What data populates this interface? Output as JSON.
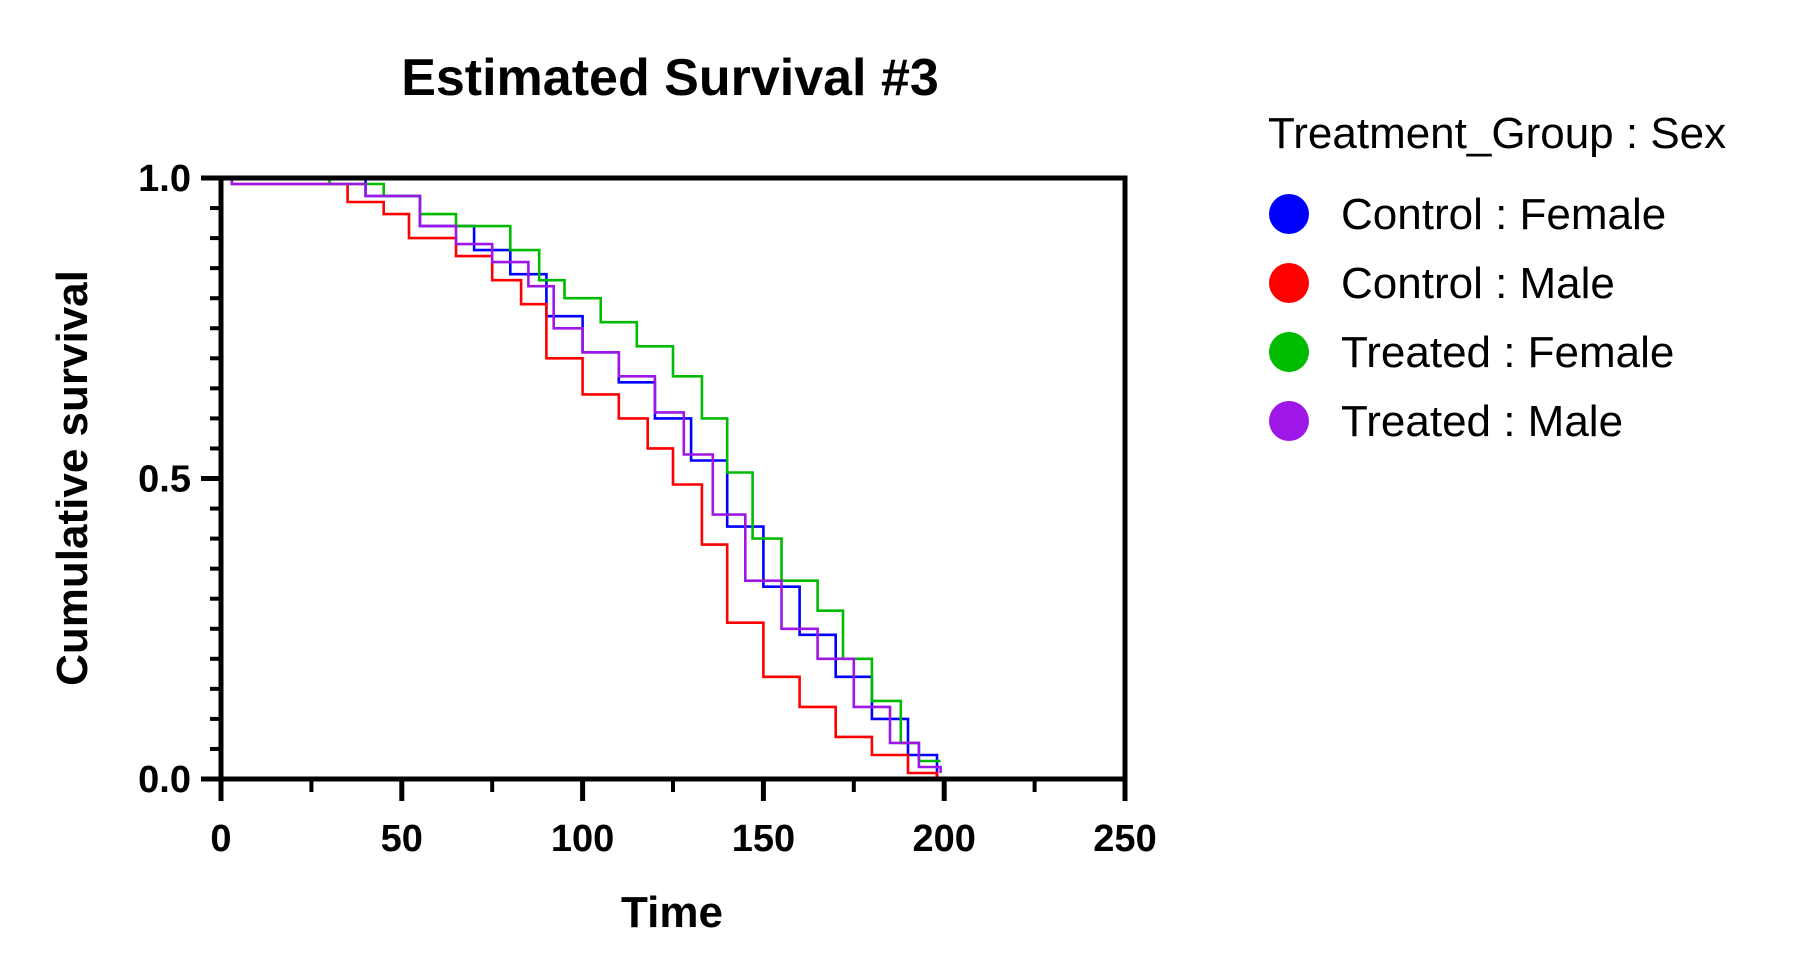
{
  "chart_data": {
    "type": "line",
    "title": "Estimated Survival #3",
    "xlabel": "Time",
    "ylabel": "Cumulative survival",
    "xlim": [
      0,
      250
    ],
    "ylim": [
      0,
      1
    ],
    "x_ticks": [
      "0",
      "50",
      "100",
      "150",
      "200",
      "250"
    ],
    "y_ticks": [
      "0.0",
      "0.5",
      "1.0"
    ],
    "grid": false,
    "legend_title": "Treatment_Group : Sex",
    "legend_position": "right",
    "series": [
      {
        "name": "Control : Female",
        "color": "#0000ff",
        "points": [
          [
            0,
            1.0
          ],
          [
            3,
            1.0
          ],
          [
            20,
            1.0
          ],
          [
            40,
            0.97
          ],
          [
            55,
            0.92
          ],
          [
            70,
            0.88
          ],
          [
            80,
            0.84
          ],
          [
            90,
            0.77
          ],
          [
            100,
            0.71
          ],
          [
            110,
            0.66
          ],
          [
            120,
            0.6
          ],
          [
            130,
            0.53
          ],
          [
            140,
            0.42
          ],
          [
            150,
            0.32
          ],
          [
            160,
            0.24
          ],
          [
            170,
            0.17
          ],
          [
            180,
            0.1
          ],
          [
            190,
            0.04
          ],
          [
            198,
            0.0
          ]
        ]
      },
      {
        "name": "Control : Male",
        "color": "#ff0000",
        "points": [
          [
            0,
            1.0
          ],
          [
            3,
            0.99
          ],
          [
            20,
            0.99
          ],
          [
            35,
            0.96
          ],
          [
            45,
            0.94
          ],
          [
            52,
            0.9
          ],
          [
            65,
            0.87
          ],
          [
            75,
            0.83
          ],
          [
            83,
            0.79
          ],
          [
            90,
            0.7
          ],
          [
            100,
            0.64
          ],
          [
            110,
            0.6
          ],
          [
            118,
            0.55
          ],
          [
            125,
            0.49
          ],
          [
            133,
            0.39
          ],
          [
            140,
            0.26
          ],
          [
            150,
            0.17
          ],
          [
            160,
            0.12
          ],
          [
            170,
            0.07
          ],
          [
            180,
            0.04
          ],
          [
            190,
            0.01
          ],
          [
            198,
            0.0
          ]
        ]
      },
      {
        "name": "Treated : Female",
        "color": "#00bb00",
        "points": [
          [
            0,
            1.0
          ],
          [
            3,
            1.0
          ],
          [
            30,
            0.99
          ],
          [
            45,
            0.97
          ],
          [
            55,
            0.94
          ],
          [
            65,
            0.92
          ],
          [
            80,
            0.88
          ],
          [
            88,
            0.83
          ],
          [
            95,
            0.8
          ],
          [
            105,
            0.76
          ],
          [
            115,
            0.72
          ],
          [
            125,
            0.67
          ],
          [
            133,
            0.6
          ],
          [
            140,
            0.51
          ],
          [
            147,
            0.4
          ],
          [
            155,
            0.33
          ],
          [
            165,
            0.28
          ],
          [
            172,
            0.2
          ],
          [
            180,
            0.13
          ],
          [
            188,
            0.06
          ],
          [
            193,
            0.03
          ],
          [
            199,
            0.03
          ]
        ]
      },
      {
        "name": "Treated : Male",
        "color": "#9e17e6",
        "points": [
          [
            0,
            1.0
          ],
          [
            3,
            0.99
          ],
          [
            25,
            0.99
          ],
          [
            40,
            0.97
          ],
          [
            55,
            0.92
          ],
          [
            65,
            0.89
          ],
          [
            75,
            0.86
          ],
          [
            85,
            0.82
          ],
          [
            92,
            0.75
          ],
          [
            100,
            0.71
          ],
          [
            110,
            0.67
          ],
          [
            120,
            0.61
          ],
          [
            128,
            0.54
          ],
          [
            136,
            0.44
          ],
          [
            145,
            0.33
          ],
          [
            155,
            0.25
          ],
          [
            165,
            0.2
          ],
          [
            175,
            0.12
          ],
          [
            185,
            0.06
          ],
          [
            193,
            0.02
          ],
          [
            199,
            0.01
          ]
        ]
      }
    ]
  }
}
